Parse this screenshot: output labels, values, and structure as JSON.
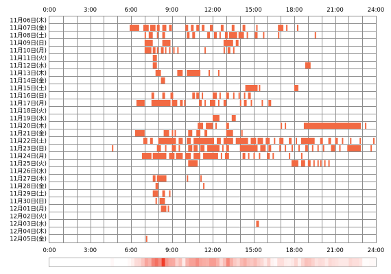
{
  "chart_data": {
    "type": "timeline",
    "title": "",
    "xlabel": "",
    "ylabel": "",
    "x_range_hours": [
      0,
      24
    ],
    "x_ticks": [
      "0:00",
      "3:00",
      "6:00",
      "9:00",
      "12:00",
      "15:00",
      "18:00",
      "21:00",
      "24:00"
    ],
    "grid": true,
    "colors": {
      "activity": "#f26a43",
      "grid": "#8c8c8c",
      "heatmap_peak": "#f03c28"
    },
    "rows": [
      {
        "label": "11月06日(木)",
        "intervals": []
      },
      {
        "label": "11月07日(金)",
        "intervals": [
          [
            5.9,
            6.6
          ],
          [
            6.9,
            7.3
          ],
          [
            7.4,
            7.8
          ],
          [
            7.9,
            8.1
          ],
          [
            8.3,
            8.6
          ],
          [
            8.8,
            9.0
          ],
          [
            10.0,
            10.2
          ],
          [
            10.4,
            10.6
          ],
          [
            10.8,
            11.0
          ],
          [
            11.2,
            11.4
          ],
          [
            11.8,
            12.0
          ],
          [
            12.6,
            12.8
          ],
          [
            13.4,
            13.6
          ],
          [
            14.2,
            14.4
          ],
          [
            15.2,
            15.3
          ],
          [
            16.8,
            17.2
          ],
          [
            17.4,
            17.5
          ],
          [
            18.2,
            18.3
          ]
        ]
      },
      {
        "label": "11月08日(土)",
        "intervals": [
          [
            7.0,
            7.1
          ],
          [
            7.3,
            7.6
          ],
          [
            7.9,
            8.0
          ],
          [
            8.3,
            8.5
          ],
          [
            10.1,
            10.3
          ],
          [
            10.5,
            10.7
          ],
          [
            11.6,
            11.8
          ],
          [
            12.1,
            12.3
          ],
          [
            12.5,
            12.6
          ],
          [
            12.9,
            13.1
          ],
          [
            13.2,
            13.8
          ],
          [
            13.9,
            14.3
          ],
          [
            14.5,
            14.6
          ],
          [
            15.1,
            15.3
          ],
          [
            15.7,
            15.8
          ],
          [
            16.8,
            16.9
          ],
          [
            19.5,
            19.6
          ]
        ]
      },
      {
        "label": "11月09日(日)",
        "intervals": [
          [
            7.0,
            7.6
          ],
          [
            8.3,
            8.9
          ],
          [
            12.8,
            13.5
          ],
          [
            13.7,
            13.9
          ]
        ]
      },
      {
        "label": "11月10日(月)",
        "intervals": [
          [
            7.0,
            7.5
          ],
          [
            7.6,
            7.8
          ],
          [
            7.9,
            8.0
          ],
          [
            8.2,
            8.4
          ],
          [
            8.5,
            8.6
          ],
          [
            8.8,
            8.9
          ],
          [
            9.1,
            9.2
          ],
          [
            9.4,
            9.5
          ],
          [
            11.4,
            11.5
          ],
          [
            12.8,
            12.9
          ],
          [
            13.1,
            13.3
          ],
          [
            13.5,
            13.6
          ]
        ]
      },
      {
        "label": "11月11日(火)",
        "intervals": [
          [
            7.6,
            7.9
          ]
        ]
      },
      {
        "label": "11月12日(水)",
        "intervals": [
          [
            7.6,
            7.9
          ],
          [
            18.8,
            19.2
          ]
        ]
      },
      {
        "label": "11月13日(木)",
        "intervals": [
          [
            7.8,
            8.2
          ],
          [
            9.4,
            9.8
          ],
          [
            10.1,
            11.1
          ],
          [
            11.7,
            11.8
          ],
          [
            12.4,
            12.5
          ]
        ]
      },
      {
        "label": "11月14日(金)",
        "intervals": [
          [
            8.2,
            8.5
          ]
        ]
      },
      {
        "label": "11月15日(土)",
        "intervals": [
          [
            14.4,
            15.3
          ],
          [
            15.4,
            15.5
          ],
          [
            18.0,
            18.3
          ]
        ]
      },
      {
        "label": "11月16日(日)",
        "intervals": [
          [
            7.5,
            7.7
          ],
          [
            8.3,
            8.5
          ],
          [
            8.9,
            9.1
          ],
          [
            10.5,
            10.7
          ],
          [
            10.8,
            11.0
          ],
          [
            11.2,
            11.3
          ],
          [
            12.0,
            12.3
          ],
          [
            12.5,
            12.6
          ],
          [
            13.0,
            13.2
          ],
          [
            13.5,
            13.6
          ],
          [
            13.9,
            14.0
          ],
          [
            14.3,
            14.4
          ],
          [
            14.6,
            14.8
          ]
        ]
      },
      {
        "label": "11月17日(月)",
        "intervals": [
          [
            6.4,
            7.0
          ],
          [
            7.5,
            8.9
          ],
          [
            9.0,
            9.4
          ],
          [
            9.6,
            9.8
          ],
          [
            9.9,
            10.0
          ],
          [
            11.0,
            11.2
          ],
          [
            11.4,
            11.5
          ],
          [
            11.8,
            12.2
          ],
          [
            12.4,
            12.5
          ],
          [
            12.8,
            13.0
          ],
          [
            14.0,
            14.1
          ],
          [
            14.3,
            14.5
          ],
          [
            14.8,
            14.9
          ],
          [
            15.6,
            15.7
          ],
          [
            16.1,
            16.3
          ]
        ]
      },
      {
        "label": "11月18日(火)",
        "intervals": []
      },
      {
        "label": "11月19日(水)",
        "intervals": [
          [
            12.0,
            12.5
          ],
          [
            13.4,
            13.7
          ]
        ]
      },
      {
        "label": "11月20日(木)",
        "intervals": [
          [
            10.9,
            11.3
          ],
          [
            11.5,
            12.0
          ],
          [
            12.2,
            12.3
          ],
          [
            13.0,
            13.2
          ],
          [
            17.0,
            17.1
          ],
          [
            17.3,
            17.4
          ],
          [
            18.7,
            22.9
          ],
          [
            23.2,
            23.3
          ]
        ]
      },
      {
        "label": "11月21日(金)",
        "intervals": [
          [
            6.3,
            7.0
          ],
          [
            8.4,
            8.8
          ],
          [
            9.0,
            9.1
          ],
          [
            9.2,
            9.3
          ],
          [
            10.2,
            10.5
          ],
          [
            10.8,
            11.1
          ],
          [
            11.4,
            11.6
          ],
          [
            13.0,
            13.5
          ],
          [
            14.1,
            14.2
          ]
        ]
      },
      {
        "label": "11月22日(土)",
        "intervals": [
          [
            6.9,
            7.2
          ],
          [
            7.4,
            7.6
          ],
          [
            8.0,
            9.3
          ],
          [
            9.5,
            9.8
          ],
          [
            10.1,
            10.4
          ],
          [
            10.6,
            12.1
          ],
          [
            12.3,
            12.6
          ],
          [
            12.8,
            13.5
          ],
          [
            13.7,
            14.6
          ],
          [
            14.8,
            15.2
          ],
          [
            15.3,
            15.7
          ],
          [
            15.9,
            16.2
          ],
          [
            16.5,
            16.6
          ],
          [
            16.9,
            17.2
          ],
          [
            17.6,
            17.8
          ],
          [
            18.1,
            18.2
          ],
          [
            18.5,
            19.5
          ],
          [
            19.9,
            20.1
          ],
          [
            20.5,
            20.7
          ],
          [
            21.0,
            21.2
          ],
          [
            21.5,
            21.6
          ],
          [
            22.1,
            22.2
          ],
          [
            22.8,
            22.9
          ],
          [
            23.8,
            23.9
          ]
        ]
      },
      {
        "label": "11月23日(日)",
        "intervals": [
          [
            4.6,
            4.7
          ],
          [
            7.9,
            8.2
          ],
          [
            8.5,
            8.6
          ],
          [
            9.0,
            9.3
          ],
          [
            9.5,
            9.6
          ],
          [
            10.2,
            10.5
          ],
          [
            10.6,
            10.9
          ],
          [
            11.1,
            11.4
          ],
          [
            11.6,
            12.5
          ],
          [
            12.7,
            12.8
          ],
          [
            13.0,
            13.2
          ],
          [
            14.0,
            15.3
          ],
          [
            15.5,
            15.9
          ],
          [
            16.1,
            16.3
          ],
          [
            16.9,
            17.0
          ],
          [
            17.3,
            17.4
          ],
          [
            17.8,
            17.9
          ],
          [
            18.3,
            18.4
          ],
          [
            18.8,
            19.0
          ],
          [
            19.3,
            19.4
          ],
          [
            19.7,
            19.8
          ],
          [
            20.1,
            20.2
          ],
          [
            20.7,
            21.0
          ],
          [
            21.3,
            21.4
          ],
          [
            21.9,
            22.9
          ],
          [
            23.6,
            23.7
          ]
        ]
      },
      {
        "label": "11月24日(月)",
        "intervals": [
          [
            6.8,
            7.5
          ],
          [
            7.6,
            8.6
          ],
          [
            8.8,
            9.2
          ],
          [
            9.3,
            9.8
          ],
          [
            10.0,
            10.4
          ],
          [
            10.6,
            11.1
          ],
          [
            11.3,
            12.4
          ],
          [
            12.6,
            12.7
          ],
          [
            12.9,
            13.2
          ],
          [
            14.2,
            14.4
          ],
          [
            14.6,
            14.7
          ],
          [
            15.0,
            15.1
          ],
          [
            15.4,
            15.5
          ],
          [
            16.0,
            16.2
          ],
          [
            16.4,
            16.5
          ],
          [
            17.6,
            17.7
          ],
          [
            18.5,
            18.6
          ]
        ]
      },
      {
        "label": "11月25日(火)",
        "intervals": [
          [
            10.2,
            10.9
          ],
          [
            17.8,
            18.3
          ],
          [
            18.5,
            18.8
          ],
          [
            19.0,
            19.2
          ],
          [
            19.4,
            19.5
          ],
          [
            19.7,
            19.8
          ],
          [
            19.9,
            20.0
          ],
          [
            20.2,
            20.3
          ],
          [
            20.5,
            20.6
          ]
        ]
      },
      {
        "label": "11月26日(水)",
        "intervals": []
      },
      {
        "label": "11月27日(木)",
        "intervals": [
          [
            7.6,
            7.8
          ],
          [
            7.9,
            8.6
          ],
          [
            10.1,
            10.2
          ],
          [
            11.1,
            11.2
          ]
        ]
      },
      {
        "label": "11月28日(金)",
        "intervals": [
          [
            7.8,
            8.0
          ],
          [
            11.3,
            11.4
          ]
        ]
      },
      {
        "label": "11月29日(土)",
        "intervals": [
          [
            7.6,
            8.0
          ],
          [
            8.3,
            8.5
          ],
          [
            8.8,
            8.9
          ]
        ]
      },
      {
        "label": "11月30日(日)",
        "intervals": [
          [
            7.8,
            7.9
          ],
          [
            8.1,
            8.5
          ]
        ]
      },
      {
        "label": "12月01日(月)",
        "intervals": [
          [
            8.2,
            8.6
          ],
          [
            8.7,
            8.8
          ]
        ]
      },
      {
        "label": "12月02日(火)",
        "intervals": []
      },
      {
        "label": "12月03日(水)",
        "intervals": [
          [
            15.2,
            15.4
          ]
        ]
      },
      {
        "label": "12月04日(木)",
        "intervals": []
      },
      {
        "label": "12月05日(金)",
        "intervals": [
          [
            7.1,
            7.2
          ]
        ]
      }
    ]
  }
}
